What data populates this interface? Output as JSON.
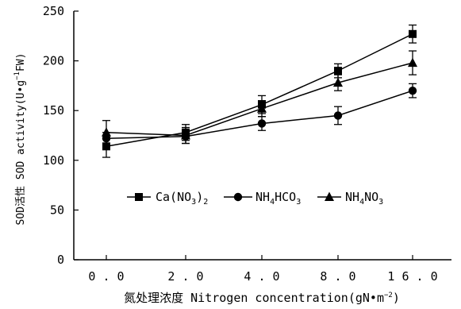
{
  "chart_data": {
    "type": "line",
    "x_title": {
      "cn": "氮处理浓度",
      "en": " Nitrogen concentration(gN•m",
      "sup": "−2",
      "close": ")"
    },
    "y_title": {
      "text": "SOD活性 SOD activity(U•g",
      "sup": "−1",
      "tail": "FW)"
    },
    "categories": [
      "0.0",
      "2.0",
      "4.0",
      "8.0",
      "16.0"
    ],
    "ylim": [
      0,
      250
    ],
    "yticks": [
      0,
      50,
      100,
      150,
      200,
      250
    ],
    "series": [
      {
        "name": "Ca(NO3)2",
        "label_parts": [
          {
            "t": "Ca(NO",
            "s": "normal"
          },
          {
            "t": "3",
            "s": "sub"
          },
          {
            "t": ")",
            "s": "normal"
          },
          {
            "t": "2",
            "s": "sub"
          }
        ],
        "marker": "square",
        "values": [
          114,
          128,
          156,
          190,
          227
        ],
        "errors": [
          11,
          8,
          9,
          7,
          9
        ]
      },
      {
        "name": "NH4HCO3",
        "label_parts": [
          {
            "t": "NH",
            "s": "normal"
          },
          {
            "t": "4",
            "s": "sub"
          },
          {
            "t": "HCO",
            "s": "normal"
          },
          {
            "t": "3",
            "s": "sub"
          }
        ],
        "marker": "circle",
        "values": [
          122,
          124,
          137,
          145,
          170
        ],
        "errors": [
          6,
          7,
          7,
          9,
          7
        ]
      },
      {
        "name": "NH4NO3",
        "label_parts": [
          {
            "t": "NH",
            "s": "normal"
          },
          {
            "t": "4",
            "s": "sub"
          },
          {
            "t": "NO",
            "s": "normal"
          },
          {
            "t": "3",
            "s": "sub"
          }
        ],
        "marker": "triangle",
        "values": [
          128,
          125,
          152,
          178,
          198
        ],
        "errors": [
          12,
          8,
          8,
          8,
          12
        ]
      }
    ],
    "legend_position": "center-left"
  }
}
